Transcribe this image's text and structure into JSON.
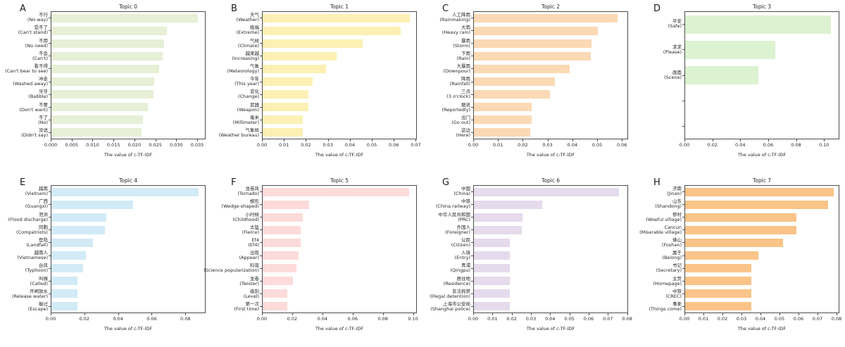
{
  "figure": {
    "background": "#ffffff",
    "axis_color": "#4d4d4d",
    "xlabel": "The value of c-TF-IDF"
  },
  "chart_data": [
    {
      "panel_letter": "A",
      "type": "bar",
      "orientation": "horizontal",
      "title": "Topic 0",
      "bar_color": "#e7efd6",
      "xlabel": "The value of c-TF-IDF",
      "xlim": [
        0,
        0.037
      ],
      "xticks": [
        "0.000",
        "0.005",
        "0.010",
        "0.015",
        "0.020",
        "0.025",
        "0.030",
        "0.035"
      ],
      "bars": [
        {
          "term": "不行",
          "translation": "(No way)",
          "value": 0.0353
        },
        {
          "term": "受不了",
          "translation": "(Can't stand)",
          "value": 0.0278
        },
        {
          "term": "不用",
          "translation": "(No need)",
          "value": 0.0272
        },
        {
          "term": "不会",
          "translation": "(Can't)",
          "value": 0.0268
        },
        {
          "term": "看不得",
          "translation": "(Can't bear to see)",
          "value": 0.0259
        },
        {
          "term": "冲走",
          "translation": "(Washed away)",
          "value": 0.0247
        },
        {
          "term": "牙牙",
          "translation": "(Babble)",
          "value": 0.0246
        },
        {
          "term": "不要",
          "translation": "(Don't want)",
          "value": 0.0233
        },
        {
          "term": "不了",
          "translation": "(No)",
          "value": 0.0221
        },
        {
          "term": "没说",
          "translation": "(Didn't say)",
          "value": 0.0217
        }
      ]
    },
    {
      "panel_letter": "B",
      "type": "bar",
      "orientation": "horizontal",
      "title": "Topic 1",
      "bar_color": "#fcf0b4",
      "xlabel": "The value of c-TF-IDF",
      "xlim": [
        0,
        0.0705
      ],
      "xticks": [
        "0.00",
        "0.01",
        "0.02",
        "0.03",
        "0.04",
        "0.05",
        "0.06",
        "0.07"
      ],
      "bars": [
        {
          "term": "天气",
          "translation": "(Weather)",
          "value": 0.0675
        },
        {
          "term": "极端",
          "translation": "(Extreme)",
          "value": 0.0635
        },
        {
          "term": "气候",
          "translation": "(Climate)",
          "value": 0.046
        },
        {
          "term": "越来越",
          "translation": "(Increasing)",
          "value": 0.034
        },
        {
          "term": "气象",
          "translation": "(Meteorology)",
          "value": 0.029
        },
        {
          "term": "今年",
          "translation": "(This year)",
          "value": 0.023
        },
        {
          "term": "变化",
          "translation": "(Change)",
          "value": 0.021
        },
        {
          "term": "武器",
          "translation": "(Weapon)",
          "value": 0.021
        },
        {
          "term": "毫米",
          "translation": "(Millimeter)",
          "value": 0.0185
        },
        {
          "term": "气象局",
          "translation": "(Weather bureau)",
          "value": 0.0185
        }
      ]
    },
    {
      "panel_letter": "C",
      "type": "bar",
      "orientation": "horizontal",
      "title": "Topic 2",
      "bar_color": "#fbd9b4",
      "xlabel": "The value of c-TF-IDF",
      "xlim": [
        0,
        0.0625
      ],
      "xticks": [
        "0.00",
        "0.01",
        "0.02",
        "0.03",
        "0.04",
        "0.05",
        "0.06"
      ],
      "bars": [
        {
          "term": "人工降雨",
          "translation": "(Rainmaking)",
          "value": 0.0585
        },
        {
          "term": "大雨",
          "translation": "(Heavy rain)",
          "value": 0.0505
        },
        {
          "term": "暴雨",
          "translation": "(Storm)",
          "value": 0.048
        },
        {
          "term": "下雨",
          "translation": "(Rain)",
          "value": 0.0475
        },
        {
          "term": "大暴雨",
          "translation": "(Downpour)",
          "value": 0.039
        },
        {
          "term": "降雨",
          "translation": "(Rainfall)",
          "value": 0.033
        },
        {
          "term": "三点",
          "translation": "(3 o'clock)",
          "value": 0.031
        },
        {
          "term": "据说",
          "translation": "(Reportedly)",
          "value": 0.0235
        },
        {
          "term": "出门",
          "translation": "(Go out)",
          "value": 0.0235
        },
        {
          "term": "这边",
          "translation": "(Here)",
          "value": 0.023
        }
      ]
    },
    {
      "panel_letter": "D",
      "type": "bar",
      "orientation": "horizontal",
      "title": "Topic 3",
      "bar_color": "#dcf2d0",
      "xlabel": "The value of c-TF-IDF",
      "xlim": [
        0,
        0.111
      ],
      "xticks": [
        "0.00",
        "0.02",
        "0.04",
        "0.06",
        "0.08",
        "0.10"
      ],
      "bars": [
        {
          "term": "平安",
          "translation": "(Safe)",
          "value": 0.1055
        },
        {
          "term": "求求",
          "translation": "(Please)",
          "value": 0.065
        },
        {
          "term": "画面",
          "translation": "(Scene)",
          "value": 0.053
        },
        {
          "term": "",
          "translation": "",
          "value": null
        },
        {
          "term": "",
          "translation": "",
          "value": null
        }
      ]
    },
    {
      "panel_letter": "E",
      "type": "bar",
      "orientation": "horizontal",
      "title": "Topic 4",
      "bar_color": "#d2ebf7",
      "xlabel": "The value of c-TF-IDF",
      "xlim": [
        0,
        0.092
      ],
      "xticks": [
        "0.00",
        "0.02",
        "0.04",
        "0.06",
        "0.08"
      ],
      "bars": [
        {
          "term": "越南",
          "translation": "(Vietnam)",
          "value": 0.088
        },
        {
          "term": "广西",
          "translation": "(Guangxi)",
          "value": 0.049
        },
        {
          "term": "泄洪",
          "translation": "(Flood discharge)",
          "value": 0.033
        },
        {
          "term": "同胞",
          "translation": "(Compatriots)",
          "value": 0.032
        },
        {
          "term": "登陆",
          "translation": "(Landfall)",
          "value": 0.025
        },
        {
          "term": "越南人",
          "translation": "(Vietnamese)",
          "value": 0.0205
        },
        {
          "term": "台风",
          "translation": "(Typhoon)",
          "value": 0.019
        },
        {
          "term": "叫做",
          "translation": "(Called)",
          "value": 0.0155
        },
        {
          "term": "开闸放水",
          "translation": "(Release water)",
          "value": 0.0155
        },
        {
          "term": "躲过",
          "translation": "(Escape)",
          "value": 0.0155
        }
      ]
    },
    {
      "panel_letter": "F",
      "type": "bar",
      "orientation": "horizontal",
      "title": "Topic 5",
      "bar_color": "#fcdbda",
      "xlabel": "The value of c-TF-IDF",
      "xlim": [
        0,
        0.1025
      ],
      "xticks": [
        "0.00",
        "0.02",
        "0.04",
        "0.06",
        "0.08",
        "0.10"
      ],
      "bars": [
        {
          "term": "龙卷风",
          "translation": "(Tornado)",
          "value": 0.098
        },
        {
          "term": "楔形",
          "translation": "(Wedge-shaped)",
          "value": 0.031
        },
        {
          "term": "小时候",
          "translation": "(Childhood)",
          "value": 0.027
        },
        {
          "term": "太猛",
          "translation": "(Fierce)",
          "value": 0.0256
        },
        {
          "term": "Ef4",
          "translation": "(Ef4)",
          "value": 0.0255
        },
        {
          "term": "出现",
          "translation": "(Appear)",
          "value": 0.024
        },
        {
          "term": "科普",
          "translation": "(Science popularization)",
          "value": 0.0224
        },
        {
          "term": "龙卷",
          "translation": "(Twister)",
          "value": 0.02
        },
        {
          "term": "级别",
          "translation": "(Level)",
          "value": 0.0166
        },
        {
          "term": "第一次",
          "translation": "(First time)",
          "value": 0.0163
        }
      ]
    },
    {
      "panel_letter": "G",
      "type": "bar",
      "orientation": "horizontal",
      "title": "Topic 6",
      "bar_color": "#e5dbec",
      "xlabel": "The value of c-TF-IDF",
      "xlim": [
        0,
        0.0805
      ],
      "xticks": [
        "0.00",
        "0.01",
        "0.02",
        "0.03",
        "0.04",
        "0.05",
        "0.06",
        "0.07",
        "0.08"
      ],
      "bars": [
        {
          "term": "中国",
          "translation": "(China)",
          "value": 0.076
        },
        {
          "term": "中铁",
          "translation": "(China railway)",
          "value": 0.036
        },
        {
          "term": "中华人民共和国",
          "translation": "(PRC)",
          "value": 0.0253
        },
        {
          "term": "外国人",
          "translation": "(Foreigner)",
          "value": 0.0252
        },
        {
          "term": "公民",
          "translation": "(Citizen)",
          "value": 0.019
        },
        {
          "term": "入境",
          "translation": "(Entry)",
          "value": 0.019
        },
        {
          "term": "青浦",
          "translation": "(Qingpu)",
          "value": 0.019
        },
        {
          "term": "居住地",
          "translation": "(Residence)",
          "value": 0.019
        },
        {
          "term": "非法拘禁",
          "translation": "(Illegal detention)",
          "value": 0.019
        },
        {
          "term": "上海市公安局",
          "translation": "(Shanghai police)",
          "value": 0.019
        }
      ]
    },
    {
      "panel_letter": "H",
      "type": "bar",
      "orientation": "horizontal",
      "title": "Topic 7",
      "bar_color": "#fac488",
      "xlabel": "The value of c-TF-IDF",
      "xlim": [
        0,
        0.0815
      ],
      "xticks": [
        "0.00",
        "0.01",
        "0.02",
        "0.03",
        "0.04",
        "0.05",
        "0.06",
        "0.07",
        "0.08"
      ],
      "bars": [
        {
          "term": "济南",
          "translation": "(Jinan)",
          "value": 0.079
        },
        {
          "term": "山东",
          "translation": "(Shandong)",
          "value": 0.076
        },
        {
          "term": "惨村",
          "translation": "(Woeful village)",
          "value": 0.059
        },
        {
          "term": "Cancun",
          "translation": "(Miserable village)",
          "value": 0.059
        },
        {
          "term": "佛山",
          "translation": "(Foshan)",
          "value": 0.052
        },
        {
          "term": "属于",
          "translation": "(Belong)",
          "value": 0.039
        },
        {
          "term": "书记",
          "translation": "(Secretary)",
          "value": 0.035
        },
        {
          "term": "主页",
          "translation": "(Homepage)",
          "value": 0.035
        },
        {
          "term": "中铁",
          "translation": "(CREC)",
          "value": 0.035
        },
        {
          "term": "事来",
          "translation": "(Things come)",
          "value": 0.035
        }
      ]
    }
  ]
}
